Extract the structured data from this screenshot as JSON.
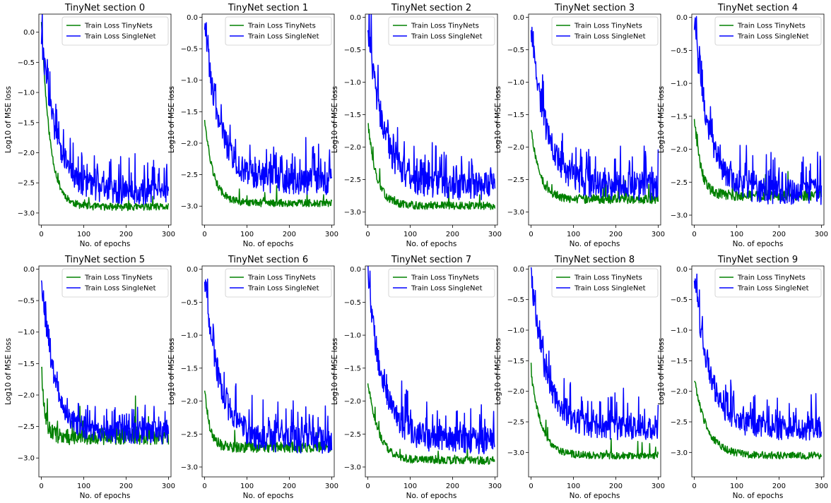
{
  "figure": {
    "background": "#ffffff",
    "xlabel": "No. of epochs",
    "ylabel": "Log10 of MSE loss",
    "legend_labels": [
      "Train Loss TinyNets",
      "Train Loss SingleNet"
    ],
    "legend_loc": "upper-right",
    "colors": {
      "tiny": "#008000",
      "single": "#0000ff"
    }
  },
  "chart_data": [
    {
      "type": "line",
      "title": "TinyNet section 0",
      "xlabel": "No. of epochs",
      "ylabel": "Log10 of MSE loss",
      "xlim": [
        -6,
        306
      ],
      "ylim": [
        -3.2,
        0.3
      ],
      "xticks": [
        0,
        100,
        200,
        300
      ],
      "yticks": [
        0.0,
        -0.5,
        -1.0,
        -1.5,
        -2.0,
        -2.5,
        -3.0
      ],
      "tiny": {
        "start": 0.2,
        "plateau": -2.9,
        "tau": 20,
        "noise": 0.06,
        "seed": 11
      },
      "single": {
        "start": -0.1,
        "plateau": -2.65,
        "tau": 35,
        "noise": 0.22,
        "seed": 101
      },
      "series": [
        {
          "name": "Train Loss TinyNets",
          "color": "#008000",
          "x_range": [
            0,
            300
          ]
        },
        {
          "name": "Train Loss SingleNet",
          "color": "#0000ff",
          "x_range": [
            0,
            300
          ]
        }
      ]
    },
    {
      "type": "line",
      "title": "TinyNet section 1",
      "xlabel": "No. of epochs",
      "ylabel": "Log10 of MSE loss",
      "xlim": [
        -6,
        306
      ],
      "ylim": [
        -3.3,
        0.05
      ],
      "xticks": [
        0,
        100,
        200,
        300
      ],
      "yticks": [
        0.0,
        -0.5,
        -1.0,
        -1.5,
        -2.0,
        -2.5,
        -3.0
      ],
      "tiny": {
        "start": -1.6,
        "plateau": -2.95,
        "tau": 20,
        "noise": 0.06,
        "seed": 12
      },
      "single": {
        "start": -0.1,
        "plateau": -2.6,
        "tau": 35,
        "noise": 0.22,
        "seed": 102
      },
      "series": [
        {
          "name": "Train Loss TinyNets",
          "color": "#008000",
          "x_range": [
            0,
            300
          ]
        },
        {
          "name": "Train Loss SingleNet",
          "color": "#0000ff",
          "x_range": [
            0,
            300
          ]
        }
      ]
    },
    {
      "type": "line",
      "title": "TinyNet section 2",
      "xlabel": "No. of epochs",
      "ylabel": "Log10 of MSE loss",
      "xlim": [
        -6,
        306
      ],
      "ylim": [
        -3.2,
        0.05
      ],
      "xticks": [
        0,
        100,
        200,
        300
      ],
      "yticks": [
        0.0,
        -0.5,
        -1.0,
        -1.5,
        -2.0,
        -2.5,
        -3.0
      ],
      "tiny": {
        "start": -1.6,
        "plateau": -2.9,
        "tau": 20,
        "noise": 0.06,
        "seed": 13
      },
      "single": {
        "start": -0.1,
        "plateau": -2.6,
        "tau": 35,
        "noise": 0.22,
        "seed": 103
      },
      "series": [
        {
          "name": "Train Loss TinyNets",
          "color": "#008000",
          "x_range": [
            0,
            300
          ]
        },
        {
          "name": "Train Loss SingleNet",
          "color": "#0000ff",
          "x_range": [
            0,
            300
          ]
        }
      ]
    },
    {
      "type": "line",
      "title": "TinyNet section 3",
      "xlabel": "No. of epochs",
      "ylabel": "Log10 of MSE loss",
      "xlim": [
        -6,
        306
      ],
      "ylim": [
        -3.2,
        0.05
      ],
      "xticks": [
        0,
        100,
        200,
        300
      ],
      "yticks": [
        0.0,
        -0.5,
        -1.0,
        -1.5,
        -2.0,
        -2.5,
        -3.0
      ],
      "tiny": {
        "start": -1.7,
        "plateau": -2.8,
        "tau": 20,
        "noise": 0.07,
        "seed": 14
      },
      "single": {
        "start": -0.1,
        "plateau": -2.6,
        "tau": 35,
        "noise": 0.22,
        "seed": 104
      },
      "series": [
        {
          "name": "Train Loss TinyNets",
          "color": "#008000",
          "x_range": [
            0,
            300
          ]
        },
        {
          "name": "Train Loss SingleNet",
          "color": "#0000ff",
          "x_range": [
            0,
            300
          ]
        }
      ]
    },
    {
      "type": "line",
      "title": "TinyNet section 4",
      "xlabel": "No. of epochs",
      "ylabel": "Log10 of MSE loss",
      "xlim": [
        -6,
        306
      ],
      "ylim": [
        -3.15,
        0.05
      ],
      "xticks": [
        0,
        100,
        200,
        300
      ],
      "yticks": [
        0.0,
        -0.5,
        -1.0,
        -1.5,
        -2.0,
        -2.5,
        -3.0
      ],
      "tiny": {
        "start": -1.5,
        "plateau": -2.7,
        "tau": 15,
        "noise": 0.08,
        "seed": 15
      },
      "single": {
        "start": -0.1,
        "plateau": -2.65,
        "tau": 35,
        "noise": 0.2,
        "seed": 105
      },
      "series": [
        {
          "name": "Train Loss TinyNets",
          "color": "#008000",
          "x_range": [
            0,
            300
          ]
        },
        {
          "name": "Train Loss SingleNet",
          "color": "#0000ff",
          "x_range": [
            0,
            300
          ]
        }
      ]
    },
    {
      "type": "line",
      "title": "TinyNet section 5",
      "xlabel": "No. of epochs",
      "ylabel": "Log10 of MSE loss",
      "xlim": [
        -6,
        306
      ],
      "ylim": [
        -3.3,
        0.05
      ],
      "xticks": [
        0,
        100,
        200,
        300
      ],
      "yticks": [
        0.0,
        -0.5,
        -1.0,
        -1.5,
        -2.0,
        -2.5,
        -3.0
      ],
      "tiny": {
        "start": -1.5,
        "plateau": -2.65,
        "tau": 8,
        "noise": 0.14,
        "seed": 16
      },
      "single": {
        "start": -0.1,
        "plateau": -2.6,
        "tau": 30,
        "noise": 0.18,
        "seed": 106
      },
      "series": [
        {
          "name": "Train Loss TinyNets",
          "color": "#008000",
          "x_range": [
            0,
            300
          ]
        },
        {
          "name": "Train Loss SingleNet",
          "color": "#0000ff",
          "x_range": [
            0,
            300
          ]
        }
      ]
    },
    {
      "type": "line",
      "title": "TinyNet section 6",
      "xlabel": "No. of epochs",
      "ylabel": "Log10 of MSE loss",
      "xlim": [
        -6,
        306
      ],
      "ylim": [
        -3.15,
        0.05
      ],
      "xticks": [
        0,
        100,
        200,
        300
      ],
      "yticks": [
        0.0,
        -0.5,
        -1.0,
        -1.5,
        -2.0,
        -2.5,
        -3.0
      ],
      "tiny": {
        "start": -1.8,
        "plateau": -2.7,
        "tau": 12,
        "noise": 0.08,
        "seed": 17
      },
      "single": {
        "start": -0.1,
        "plateau": -2.6,
        "tau": 35,
        "noise": 0.2,
        "seed": 107
      },
      "series": [
        {
          "name": "Train Loss TinyNets",
          "color": "#008000",
          "x_range": [
            0,
            300
          ]
        },
        {
          "name": "Train Loss SingleNet",
          "color": "#0000ff",
          "x_range": [
            0,
            300
          ]
        }
      ]
    },
    {
      "type": "line",
      "title": "TinyNet section 7",
      "xlabel": "No. of epochs",
      "ylabel": "Log10 of MSE loss",
      "xlim": [
        -6,
        306
      ],
      "ylim": [
        -3.15,
        0.05
      ],
      "xticks": [
        0,
        100,
        200,
        300
      ],
      "yticks": [
        0.0,
        -0.5,
        -1.0,
        -1.5,
        -2.0,
        -2.5,
        -3.0
      ],
      "tiny": {
        "start": -1.7,
        "plateau": -2.9,
        "tau": 25,
        "noise": 0.06,
        "seed": 18
      },
      "single": {
        "start": -0.1,
        "plateau": -2.6,
        "tau": 35,
        "noise": 0.2,
        "seed": 108
      },
      "series": [
        {
          "name": "Train Loss TinyNets",
          "color": "#008000",
          "x_range": [
            0,
            300
          ]
        },
        {
          "name": "Train Loss SingleNet",
          "color": "#0000ff",
          "x_range": [
            0,
            300
          ]
        }
      ]
    },
    {
      "type": "line",
      "title": "TinyNet section 8",
      "xlabel": "No. of epochs",
      "ylabel": "Log10 of MSE loss",
      "xlim": [
        -6,
        306
      ],
      "ylim": [
        -3.4,
        0.05
      ],
      "xticks": [
        0,
        100,
        200,
        300
      ],
      "yticks": [
        0.0,
        -0.5,
        -1.0,
        -1.5,
        -2.0,
        -2.5,
        -3.0
      ],
      "tiny": {
        "start": -1.7,
        "plateau": -3.05,
        "tau": 25,
        "noise": 0.06,
        "seed": 19
      },
      "single": {
        "start": -0.1,
        "plateau": -2.6,
        "tau": 35,
        "noise": 0.2,
        "seed": 109
      },
      "series": [
        {
          "name": "Train Loss TinyNets",
          "color": "#008000",
          "x_range": [
            0,
            300
          ]
        },
        {
          "name": "Train Loss SingleNet",
          "color": "#0000ff",
          "x_range": [
            0,
            300
          ]
        }
      ]
    },
    {
      "type": "line",
      "title": "TinyNet section 9",
      "xlabel": "No. of epochs",
      "ylabel": "Log10 of MSE loss",
      "xlim": [
        -6,
        306
      ],
      "ylim": [
        -3.4,
        0.05
      ],
      "xticks": [
        0,
        100,
        200,
        300
      ],
      "yticks": [
        0.0,
        -0.5,
        -1.0,
        -1.5,
        -2.0,
        -2.5,
        -3.0
      ],
      "tiny": {
        "start": -1.8,
        "plateau": -3.05,
        "tau": 30,
        "noise": 0.06,
        "seed": 20
      },
      "single": {
        "start": -0.1,
        "plateau": -2.6,
        "tau": 35,
        "noise": 0.2,
        "seed": 110
      },
      "series": [
        {
          "name": "Train Loss TinyNets",
          "color": "#008000",
          "x_range": [
            0,
            300
          ]
        },
        {
          "name": "Train Loss SingleNet",
          "color": "#0000ff",
          "x_range": [
            0,
            300
          ]
        }
      ]
    }
  ]
}
